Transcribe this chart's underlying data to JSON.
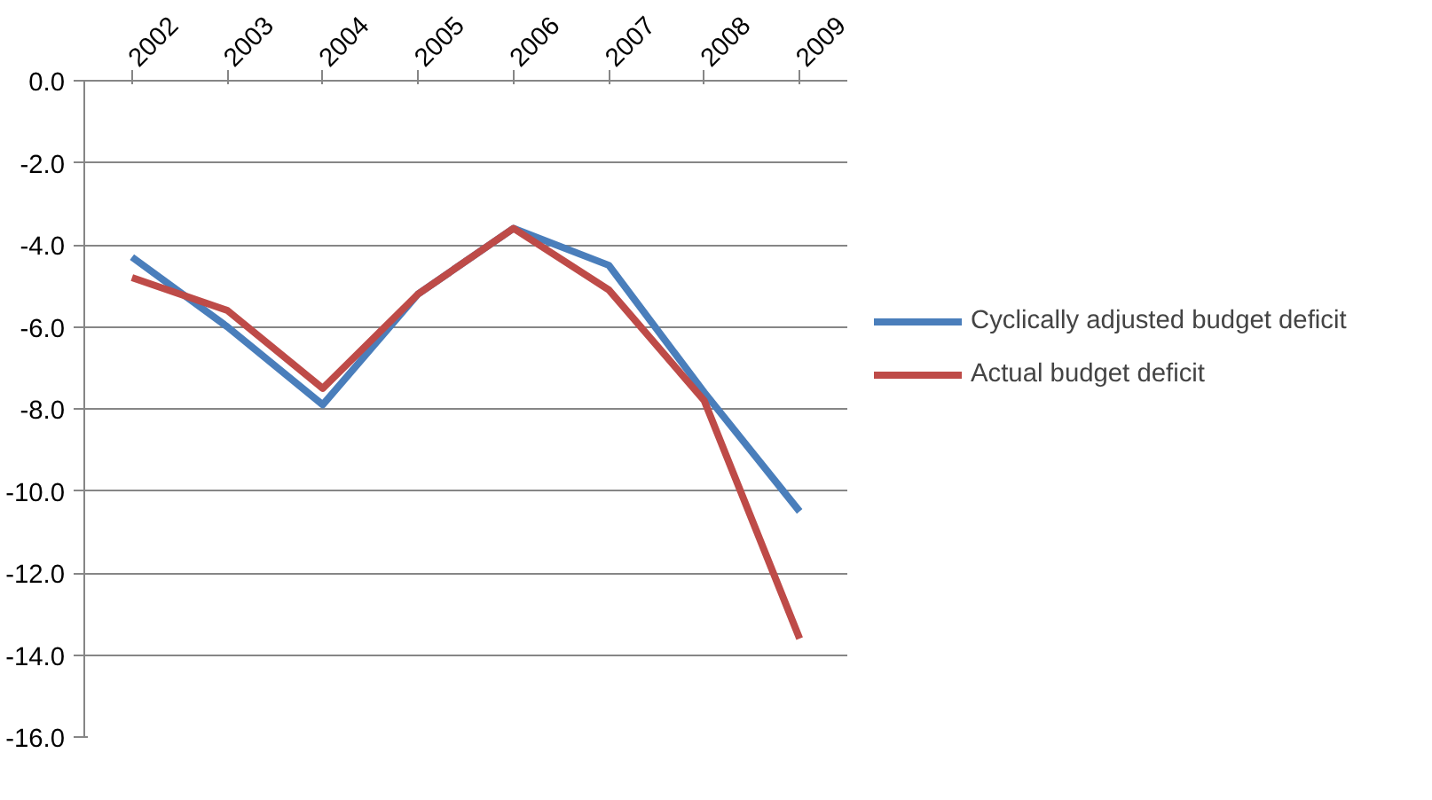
{
  "chart_data": {
    "type": "line",
    "categories": [
      "2002",
      "2003",
      "2004",
      "2005",
      "2006",
      "2007",
      "2008",
      "2009"
    ],
    "series": [
      {
        "name": "Cyclically adjusted budget deficit",
        "color": "#4a7ebb",
        "values": [
          -4.3,
          -6.0,
          -7.9,
          -5.2,
          -3.6,
          -4.5,
          -7.6,
          -10.5
        ]
      },
      {
        "name": "Actual budget deficit",
        "color": "#be4b48",
        "values": [
          -4.8,
          -5.6,
          -7.5,
          -5.2,
          -3.6,
          -5.1,
          -7.8,
          -13.6
        ]
      }
    ],
    "ylim": [
      -16,
      0
    ],
    "yticks": [
      {
        "value": 0,
        "label": "0.0"
      },
      {
        "value": -2,
        "label": "-2.0"
      },
      {
        "value": -4,
        "label": "-4.0"
      },
      {
        "value": -6,
        "label": "-6.0"
      },
      {
        "value": -8,
        "label": "-8.0"
      },
      {
        "value": -10,
        "label": "-10.0"
      },
      {
        "value": -12,
        "label": "-12.0"
      },
      {
        "value": -14,
        "label": "-14.0"
      },
      {
        "value": -16,
        "label": "-16.0"
      }
    ],
    "grid": "y",
    "legend": "right",
    "marker": "none",
    "line_style": "solid"
  }
}
